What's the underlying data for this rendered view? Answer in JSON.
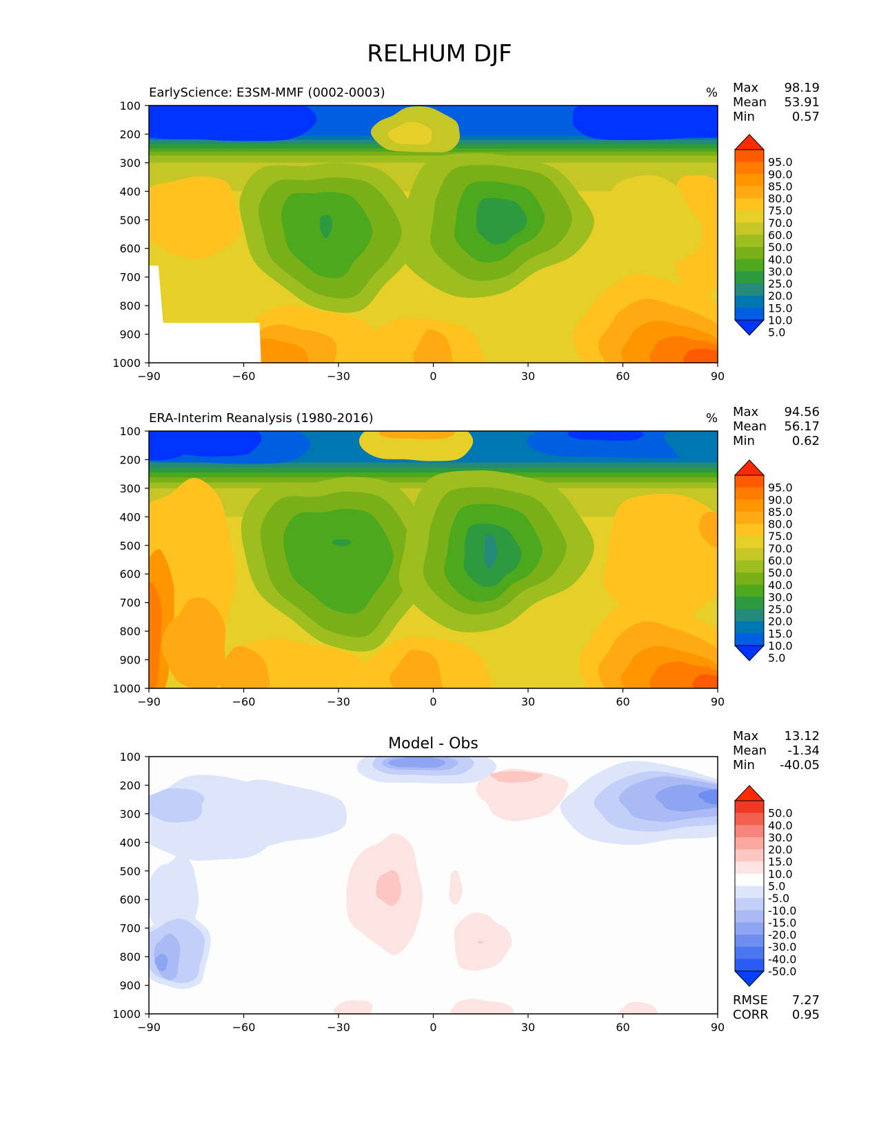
{
  "figure_title": "RELHUM DJF",
  "colors": {
    "rh_levels": [
      "#0033ff",
      "#005fe0",
      "#0077b0",
      "#268a7a",
      "#2e9a40",
      "#4ca81c",
      "#79b018",
      "#9ebe20",
      "#c6c626",
      "#e5cf28",
      "#ffc21e",
      "#ffaa12",
      "#ff9600",
      "#ff7c00",
      "#ff5a00",
      "#ff2a00"
    ],
    "diff_levels": [
      "#0040ff",
      "#2a5cf5",
      "#4c76ef",
      "#6e8ff0",
      "#8ea6f2",
      "#a9baf5",
      "#c3cff8",
      "#dde5fb",
      "#fdfdfd",
      "#fce4e2",
      "#fcc7c2",
      "#faa8a0",
      "#f7857c",
      "#f2604f",
      "#ee3a24",
      "#ff2a00"
    ]
  },
  "panels": [
    {
      "id": "model",
      "left_title": "EarlyScience: E3SM-MMF (0002-0003)",
      "center_title": "",
      "units": "%",
      "stats": [
        {
          "label": "Max",
          "value": "98.19"
        },
        {
          "label": "Mean",
          "value": "53.91"
        },
        {
          "label": "Min",
          "value": "0.57"
        }
      ],
      "colorbar_labels": [
        "95.0",
        "90.0",
        "85.0",
        "80.0",
        "75.0",
        "70.0",
        "60.0",
        "50.0",
        "40.0",
        "30.0",
        "25.0",
        "20.0",
        "15.0",
        "10.0",
        "5.0"
      ]
    },
    {
      "id": "obs",
      "left_title": "ERA-Interim Reanalysis (1980-2016)",
      "center_title": "",
      "units": "%",
      "stats": [
        {
          "label": "Max",
          "value": "94.56"
        },
        {
          "label": "Mean",
          "value": "56.17"
        },
        {
          "label": "Min",
          "value": "0.62"
        }
      ],
      "colorbar_labels": [
        "95.0",
        "90.0",
        "85.0",
        "80.0",
        "75.0",
        "70.0",
        "60.0",
        "50.0",
        "40.0",
        "30.0",
        "25.0",
        "20.0",
        "15.0",
        "10.0",
        "5.0"
      ]
    },
    {
      "id": "diff",
      "left_title": "",
      "center_title": "Model - Obs",
      "units": "",
      "stats": [
        {
          "label": "Max",
          "value": "13.12"
        },
        {
          "label": "Mean",
          "value": "-1.34"
        },
        {
          "label": "Min",
          "value": "-40.05"
        }
      ],
      "extra_stats": [
        {
          "label": "RMSE",
          "value": "7.27"
        },
        {
          "label": "CORR",
          "value": "0.95"
        }
      ],
      "colorbar_labels": [
        "50.0",
        "40.0",
        "30.0",
        "20.0",
        "15.0",
        "10.0",
        "5.0",
        "-5.0",
        "-10.0",
        "-15.0",
        "-20.0",
        "-30.0",
        "-40.0",
        "-50.0"
      ]
    }
  ],
  "chart_data": [
    {
      "type": "heatmap",
      "title": "EarlyScience: E3SM-MMF (0002-0003)",
      "variable": "RELHUM",
      "season": "DJF",
      "units": "%",
      "xlabel": "",
      "ylabel": "",
      "x_ticks": [
        -90,
        -60,
        -30,
        0,
        30,
        60,
        90
      ],
      "y_ticks": [
        100,
        200,
        300,
        400,
        500,
        600,
        700,
        800,
        900,
        1000
      ],
      "xlim": [
        -90,
        90
      ],
      "ylim": [
        1000,
        100
      ],
      "levels": [
        5,
        10,
        15,
        20,
        25,
        30,
        40,
        50,
        60,
        70,
        75,
        80,
        85,
        90,
        95
      ],
      "masked_region": {
        "lat_range": [
          -90,
          -55
        ],
        "pressure_below": 860
      },
      "features": [
        {
          "lat": -35,
          "pressure": 550,
          "value": 25,
          "note": "subtropical dry minimum"
        },
        {
          "lat": 20,
          "pressure": 520,
          "value": 22,
          "note": "subtropical dry minimum"
        },
        {
          "lat": -5,
          "pressure": 200,
          "value": 72
        },
        {
          "lat": 85,
          "pressure": 980,
          "value": 95
        }
      ]
    },
    {
      "type": "heatmap",
      "title": "ERA-Interim Reanalysis (1980-2016)",
      "units": "%",
      "x_ticks": [
        -90,
        -60,
        -30,
        0,
        30,
        60,
        90
      ],
      "y_ticks": [
        100,
        200,
        300,
        400,
        500,
        600,
        700,
        800,
        900,
        1000
      ],
      "xlim": [
        -90,
        90
      ],
      "ylim": [
        1000,
        100
      ],
      "levels": [
        5,
        10,
        15,
        20,
        25,
        30,
        40,
        50,
        60,
        70,
        75,
        80,
        85,
        90,
        95
      ],
      "features": [
        {
          "lat": -30,
          "pressure": 520,
          "value": 30
        },
        {
          "lat": 18,
          "pressure": 520,
          "value": 22
        },
        {
          "lat": -5,
          "pressure": 110,
          "value": 82
        },
        {
          "lat": -88,
          "pressure": 800,
          "value": 92
        }
      ]
    },
    {
      "type": "heatmap",
      "title": "Model - Obs",
      "units": "%",
      "x_ticks": [
        -90,
        -60,
        -30,
        0,
        30,
        60,
        90
      ],
      "y_ticks": [
        100,
        200,
        300,
        400,
        500,
        600,
        700,
        800,
        900,
        1000
      ],
      "xlim": [
        -90,
        90
      ],
      "ylim": [
        1000,
        100
      ],
      "levels": [
        -50,
        -40,
        -30,
        -20,
        -15,
        -10,
        -5,
        5,
        10,
        15,
        20,
        30,
        40,
        50
      ],
      "rmse": 7.27,
      "corr": 0.95,
      "features": [
        {
          "lat": -4,
          "pressure": 130,
          "value": -20
        },
        {
          "lat": 78,
          "pressure": 250,
          "value": -20
        },
        {
          "lat": -84,
          "pressure": 800,
          "value": -20
        },
        {
          "lat": -14,
          "pressure": 560,
          "value": 15
        },
        {
          "lat": 24,
          "pressure": 170,
          "value": 10
        }
      ]
    }
  ]
}
